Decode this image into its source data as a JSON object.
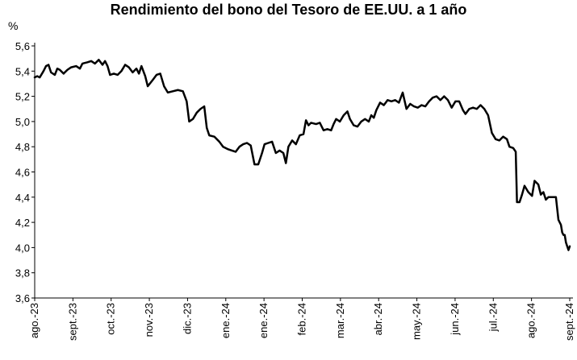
{
  "chart_data": {
    "type": "line",
    "title": "Rendimiento del bono del Tesoro de EE.UU. a 1 año",
    "ylabel": "%",
    "xlabel": "",
    "ylim": [
      3.6,
      5.6
    ],
    "yticks": [
      "5,6",
      "5,4",
      "5,2",
      "5,0",
      "4,8",
      "4,6",
      "4,4",
      "4,2",
      "4,0",
      "3,8",
      "3,6"
    ],
    "xticks": [
      "ago.-23",
      "sept.-23",
      "oct.-23",
      "nov.-23",
      "dic.-23",
      "ene.-24",
      "ene.-24",
      "feb.-24",
      "mar.-24",
      "abr.-24",
      "may.-24",
      "jun.-24",
      "jul.-24",
      "ago.-24",
      "sept.-24"
    ],
    "xrange": [
      "2023-08-01",
      "2024-09-30"
    ],
    "grid": false,
    "color": "#000000",
    "series": [
      {
        "name": "",
        "points": [
          [
            "2023-08-01",
            5.35
          ],
          [
            "2023-08-03",
            5.36
          ],
          [
            "2023-08-05",
            5.35
          ],
          [
            "2023-08-08",
            5.4
          ],
          [
            "2023-08-10",
            5.44
          ],
          [
            "2023-08-12",
            5.45
          ],
          [
            "2023-08-14",
            5.39
          ],
          [
            "2023-08-17",
            5.37
          ],
          [
            "2023-08-19",
            5.42
          ],
          [
            "2023-08-21",
            5.41
          ],
          [
            "2023-08-24",
            5.38
          ],
          [
            "2023-08-27",
            5.41
          ],
          [
            "2023-08-30",
            5.43
          ],
          [
            "2023-09-03",
            5.44
          ],
          [
            "2023-09-06",
            5.42
          ],
          [
            "2023-09-08",
            5.46
          ],
          [
            "2023-09-12",
            5.47
          ],
          [
            "2023-09-15",
            5.48
          ],
          [
            "2023-09-18",
            5.46
          ],
          [
            "2023-09-21",
            5.49
          ],
          [
            "2023-09-24",
            5.45
          ],
          [
            "2023-09-26",
            5.48
          ],
          [
            "2023-09-28",
            5.44
          ],
          [
            "2023-09-30",
            5.37
          ],
          [
            "2023-10-03",
            5.38
          ],
          [
            "2023-10-06",
            5.37
          ],
          [
            "2023-10-09",
            5.4
          ],
          [
            "2023-10-12",
            5.45
          ],
          [
            "2023-10-15",
            5.43
          ],
          [
            "2023-10-18",
            5.39
          ],
          [
            "2023-10-21",
            5.42
          ],
          [
            "2023-10-23",
            5.38
          ],
          [
            "2023-10-25",
            5.44
          ],
          [
            "2023-10-28",
            5.36
          ],
          [
            "2023-10-30",
            5.28
          ],
          [
            "2023-11-03",
            5.33
          ],
          [
            "2023-11-06",
            5.37
          ],
          [
            "2023-11-09",
            5.38
          ],
          [
            "2023-11-12",
            5.28
          ],
          [
            "2023-11-15",
            5.23
          ],
          [
            "2023-11-19",
            5.24
          ],
          [
            "2023-11-23",
            5.25
          ],
          [
            "2023-11-27",
            5.24
          ],
          [
            "2023-11-30",
            5.16
          ],
          [
            "2023-12-02",
            5.0
          ],
          [
            "2023-12-05",
            5.02
          ],
          [
            "2023-12-08",
            5.07
          ],
          [
            "2023-12-11",
            5.1
          ],
          [
            "2023-12-14",
            5.12
          ],
          [
            "2023-12-16",
            4.95
          ],
          [
            "2023-12-18",
            4.89
          ],
          [
            "2023-12-22",
            4.88
          ],
          [
            "2023-12-26",
            4.84
          ],
          [
            "2023-12-29",
            4.8
          ],
          [
            "2024-01-02",
            4.78
          ],
          [
            "2024-01-05",
            4.77
          ],
          [
            "2024-01-08",
            4.76
          ],
          [
            "2024-01-11",
            4.8
          ],
          [
            "2024-01-14",
            4.82
          ],
          [
            "2024-01-17",
            4.83
          ],
          [
            "2024-01-20",
            4.81
          ],
          [
            "2024-01-23",
            4.66
          ],
          [
            "2024-01-26",
            4.66
          ],
          [
            "2024-01-29",
            4.75
          ],
          [
            "2024-01-31",
            4.82
          ],
          [
            "2024-02-03",
            4.83
          ],
          [
            "2024-02-06",
            4.84
          ],
          [
            "2024-02-09",
            4.75
          ],
          [
            "2024-02-12",
            4.77
          ],
          [
            "2024-02-15",
            4.75
          ],
          [
            "2024-02-17",
            4.67
          ],
          [
            "2024-02-19",
            4.8
          ],
          [
            "2024-02-22",
            4.85
          ],
          [
            "2024-02-25",
            4.82
          ],
          [
            "2024-02-28",
            4.89
          ],
          [
            "2024-03-02",
            4.9
          ],
          [
            "2024-03-04",
            5.01
          ],
          [
            "2024-03-06",
            4.97
          ],
          [
            "2024-03-08",
            4.99
          ],
          [
            "2024-03-12",
            4.98
          ],
          [
            "2024-03-15",
            4.99
          ],
          [
            "2024-03-18",
            4.93
          ],
          [
            "2024-03-21",
            4.94
          ],
          [
            "2024-03-24",
            4.93
          ],
          [
            "2024-03-26",
            4.98
          ],
          [
            "2024-03-28",
            5.02
          ],
          [
            "2024-03-31",
            5.0
          ],
          [
            "2024-04-03",
            5.05
          ],
          [
            "2024-04-06",
            5.08
          ],
          [
            "2024-04-08",
            5.02
          ],
          [
            "2024-04-11",
            4.97
          ],
          [
            "2024-04-14",
            4.96
          ],
          [
            "2024-04-17",
            5.0
          ],
          [
            "2024-04-20",
            5.02
          ],
          [
            "2024-04-23",
            5.0
          ],
          [
            "2024-04-25",
            5.05
          ],
          [
            "2024-04-27",
            5.03
          ],
          [
            "2024-04-29",
            5.09
          ],
          [
            "2024-05-02",
            5.15
          ],
          [
            "2024-05-05",
            5.13
          ],
          [
            "2024-05-08",
            5.17
          ],
          [
            "2024-05-11",
            5.16
          ],
          [
            "2024-05-14",
            5.17
          ],
          [
            "2024-05-17",
            5.15
          ],
          [
            "2024-05-20",
            5.23
          ],
          [
            "2024-05-23",
            5.1
          ],
          [
            "2024-05-26",
            5.14
          ],
          [
            "2024-05-29",
            5.12
          ],
          [
            "2024-06-01",
            5.11
          ],
          [
            "2024-06-04",
            5.13
          ],
          [
            "2024-06-07",
            5.12
          ],
          [
            "2024-06-10",
            5.16
          ],
          [
            "2024-06-13",
            5.19
          ],
          [
            "2024-06-16",
            5.2
          ],
          [
            "2024-06-19",
            5.17
          ],
          [
            "2024-06-22",
            5.2
          ],
          [
            "2024-06-25",
            5.17
          ],
          [
            "2024-06-28",
            5.11
          ],
          [
            "2024-07-01",
            5.16
          ],
          [
            "2024-07-04",
            5.16
          ],
          [
            "2024-07-07",
            5.09
          ],
          [
            "2024-07-09",
            5.06
          ],
          [
            "2024-07-12",
            5.1
          ],
          [
            "2024-07-15",
            5.11
          ],
          [
            "2024-07-18",
            5.1
          ],
          [
            "2024-07-21",
            5.13
          ],
          [
            "2024-07-24",
            5.1
          ],
          [
            "2024-07-27",
            5.05
          ],
          [
            "2024-07-30",
            4.91
          ],
          [
            "2024-08-02",
            4.86
          ],
          [
            "2024-08-05",
            4.85
          ],
          [
            "2024-08-08",
            4.88
          ],
          [
            "2024-08-11",
            4.86
          ],
          [
            "2024-08-13",
            4.8
          ],
          [
            "2024-08-16",
            4.79
          ],
          [
            "2024-08-18",
            4.76
          ],
          [
            "2024-08-19",
            4.36
          ],
          [
            "2024-08-21",
            4.36
          ],
          [
            "2024-08-23",
            4.42
          ],
          [
            "2024-08-25",
            4.49
          ],
          [
            "2024-08-28",
            4.44
          ],
          [
            "2024-08-31",
            4.41
          ],
          [
            "2024-09-02",
            4.53
          ],
          [
            "2024-09-05",
            4.5
          ],
          [
            "2024-09-07",
            4.42
          ],
          [
            "2024-09-09",
            4.44
          ],
          [
            "2024-09-11",
            4.38
          ],
          [
            "2024-09-13",
            4.4
          ],
          [
            "2024-09-16",
            4.4
          ],
          [
            "2024-09-19",
            4.4
          ],
          [
            "2024-09-21",
            4.22
          ],
          [
            "2024-09-23",
            4.18
          ],
          [
            "2024-09-24",
            4.12
          ],
          [
            "2024-09-25",
            4.1
          ],
          [
            "2024-09-26",
            4.1
          ],
          [
            "2024-09-27",
            4.04
          ],
          [
            "2024-09-28",
            4.01
          ],
          [
            "2024-09-29",
            3.98
          ],
          [
            "2024-09-30",
            4.01
          ]
        ]
      }
    ]
  }
}
